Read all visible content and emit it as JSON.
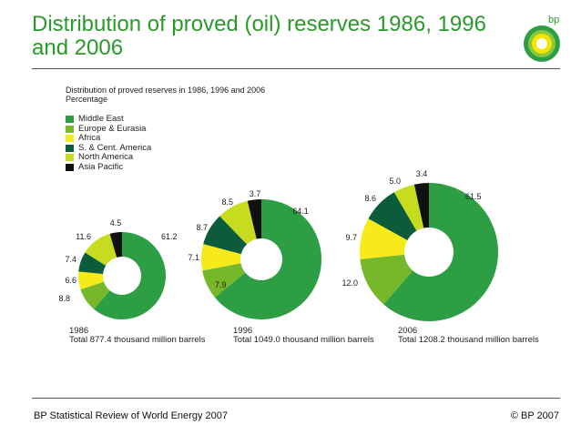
{
  "slide": {
    "title": "Distribution of proved (oil) reserves 1986, 1996 and 2006",
    "logo_text": "bp",
    "footer_left": "BP Statistical Review of World Energy 2007",
    "footer_right": "© BP 2007"
  },
  "colors": {
    "title": "#2a9a2a",
    "middle_east": "#2e9e44",
    "europe_eurasia": "#76b82a",
    "africa": "#f7ea1a",
    "s_cent_america": "#0c5b3a",
    "north_america": "#c7dc1e",
    "asia_pacific": "#111111"
  },
  "chart_data": {
    "type": "pie",
    "title": "Distribution of proved reserves in 1986, 1996 and 2006",
    "subtitle": "Percentage",
    "legend": [
      "Middle East",
      "Europe & Eurasia",
      "Africa",
      "S. & Cent. America",
      "North America",
      "Asia Pacific"
    ],
    "legend_placement": "top-left",
    "charts": [
      {
        "year": "1986",
        "total": "Total 877.4 thousand million barrels",
        "values": [
          61.2,
          8.8,
          6.6,
          7.4,
          11.6,
          4.5
        ],
        "labels": [
          "61.2",
          "8.8",
          "6.6",
          "7.4",
          "11.6",
          "4.5"
        ]
      },
      {
        "year": "1996",
        "total": "Total 1049.0 thousand million barrels",
        "values": [
          64.1,
          7.9,
          7.1,
          8.7,
          8.5,
          3.7
        ],
        "labels": [
          "64.1",
          "7.9",
          "7.1",
          "8.7",
          "8.5",
          "3.7"
        ]
      },
      {
        "year": "2006",
        "total": "Total 1208.2 thousand million barrels",
        "values": [
          61.5,
          12.0,
          9.7,
          8.6,
          5.0,
          3.4
        ],
        "labels": [
          "61.5",
          "12.0",
          "9.7",
          "8.6",
          "5.0",
          "3.4"
        ]
      }
    ]
  }
}
